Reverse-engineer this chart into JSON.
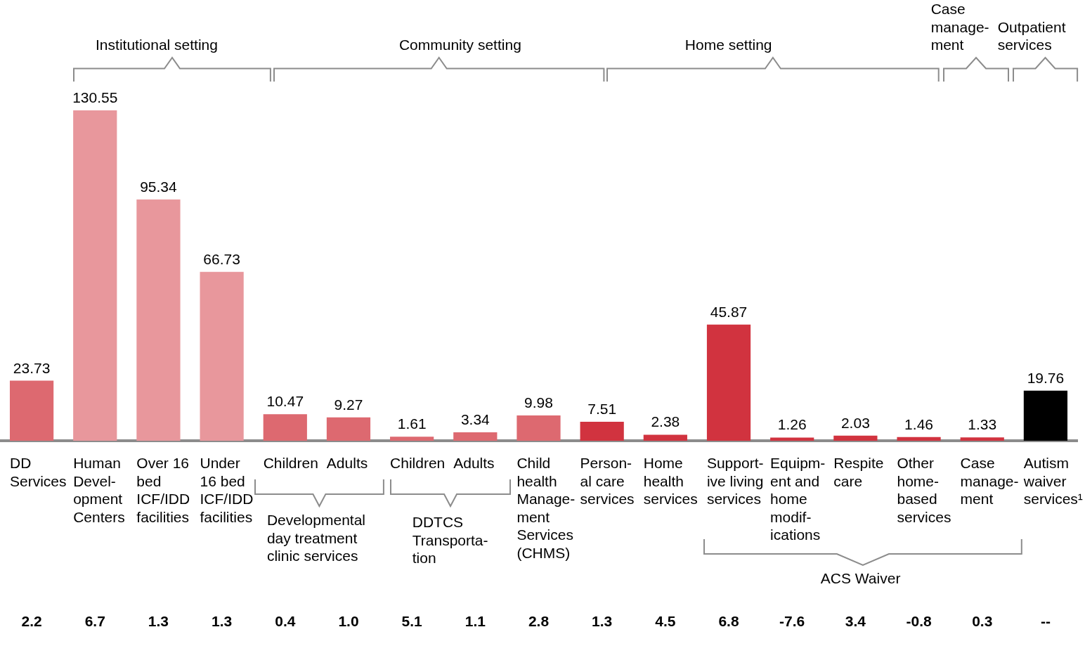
{
  "chart_data": {
    "type": "bar",
    "categories": [
      "DD\nServices",
      "Human\nDevel-\nopment\nCenters",
      "Over 16\nbed\nICF/IDD\nfacilities",
      "Under\n16 bed\nICF/IDD\nfacilities",
      "Children",
      "Adults",
      "Children",
      "Adults",
      "Child\nhealth\nManage-\nment\nServices\n(CHMS)",
      "Person-\nal care\nservices",
      "Home\nhealth\nservices",
      "Support-\nive living\nservices",
      "Equipm-\nent and\nhome\nmodif-\nications",
      "Respite\ncare",
      "Other\nhome-\nbased\nservices",
      "Case\nmanage-\nment",
      "Autism\nwaiver\nservices¹"
    ],
    "values": [
      23.73,
      130.55,
      95.34,
      66.73,
      10.47,
      9.27,
      1.61,
      3.34,
      9.98,
      7.51,
      2.38,
      45.87,
      1.26,
      2.03,
      1.46,
      1.33,
      19.76
    ],
    "colors": [
      "#dd6970",
      "#e8979c",
      "#e8979c",
      "#e8979c",
      "#dd6970",
      "#dd6970",
      "#dd6970",
      "#dd6970",
      "#dd6970",
      "#d1333f",
      "#d1333f",
      "#d1333f",
      "#d1333f",
      "#d1333f",
      "#d1333f",
      "#d1333f",
      "#000000"
    ],
    "data_labels": true,
    "annotations": [
      "Institutional setting",
      "Community setting",
      "Home setting",
      "Case\nmanage-\nment",
      "Outpatient\nservices",
      "Developmental\nday treatment\nclinic services",
      "DDTCS\nTransporta-\ntion",
      "ACS Waiver",
      "2.2",
      "6.7",
      "1.3",
      "1.3",
      "0.4",
      "1.0",
      "5.1",
      "1.1",
      "2.8",
      "1.3",
      "4.5",
      "6.8",
      "-7.6",
      "3.4",
      "-0.8",
      "0.3",
      "--"
    ]
  }
}
